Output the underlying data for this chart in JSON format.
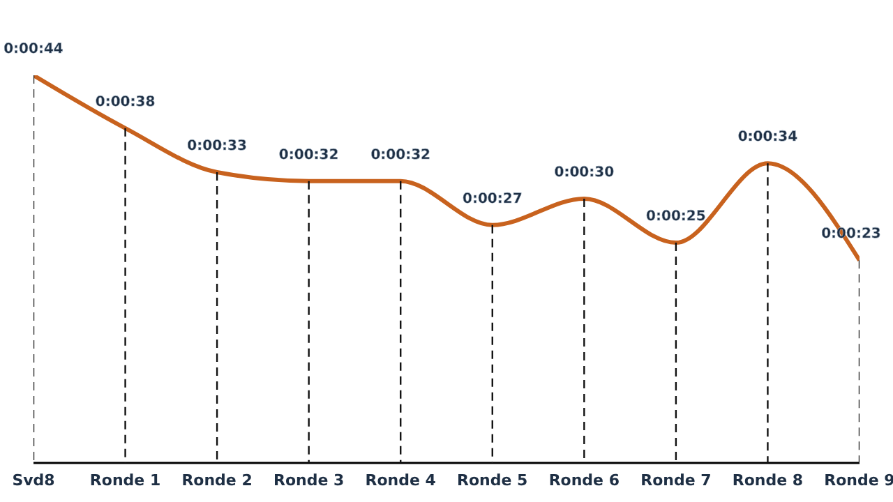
{
  "chart_data": {
    "type": "line",
    "categories": [
      "Svd8",
      "Ronde 1",
      "Ronde 2",
      "Ronde 3",
      "Ronde 4",
      "Ronde 5",
      "Ronde 6",
      "Ronde 7",
      "Ronde 8",
      "Ronde 9"
    ],
    "series": [
      {
        "color": "#c8621e",
        "values": [
          44,
          38,
          33,
          32,
          32,
          27,
          30,
          25,
          34,
          23
        ],
        "value_labels": [
          "0:00:44",
          "0:00:38",
          "0:00:33",
          "0:00:32",
          "0:00:32",
          "0:00:27",
          "0:00:30",
          "0:00:25",
          "0:00:34",
          "0:00:23"
        ]
      }
    ],
    "marker": "none",
    "grid": "x",
    "tick_labels": "x"
  }
}
